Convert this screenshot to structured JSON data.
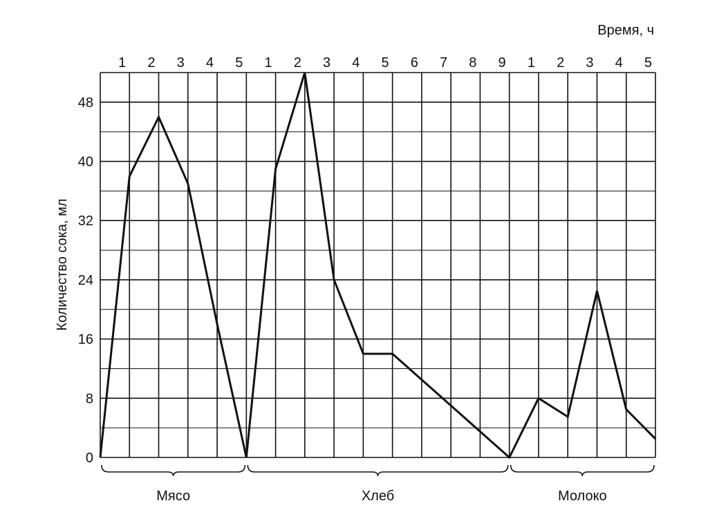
{
  "chart_data": {
    "type": "line",
    "xlabel": "Время, ч",
    "ylabel": "Количество сока, мл",
    "ylim": [
      0,
      52
    ],
    "yticks": [
      0,
      8,
      16,
      24,
      32,
      40,
      48
    ],
    "grid": true,
    "top_tick_labels": [
      "1",
      "2",
      "3",
      "4",
      "5",
      "1",
      "2",
      "3",
      "4",
      "5",
      "6",
      "7",
      "8",
      "9",
      "1",
      "2",
      "3",
      "4",
      "5"
    ],
    "groups": [
      {
        "label": "Мясо",
        "hours": 5
      },
      {
        "label": "Хлеб",
        "hours": 9
      },
      {
        "label": "Молоко",
        "hours": 5
      }
    ],
    "series": [
      {
        "x": [
          0,
          1,
          2,
          3,
          4,
          5,
          6,
          7,
          8,
          9,
          10,
          11,
          12,
          13,
          14,
          15,
          16,
          17,
          18,
          19
        ],
        "y": [
          0,
          38,
          46,
          37,
          18,
          0,
          39,
          52,
          24,
          14,
          14,
          10.5,
          7,
          3.5,
          0,
          8,
          5.5,
          22.5,
          6.5,
          2.5
        ]
      }
    ]
  }
}
